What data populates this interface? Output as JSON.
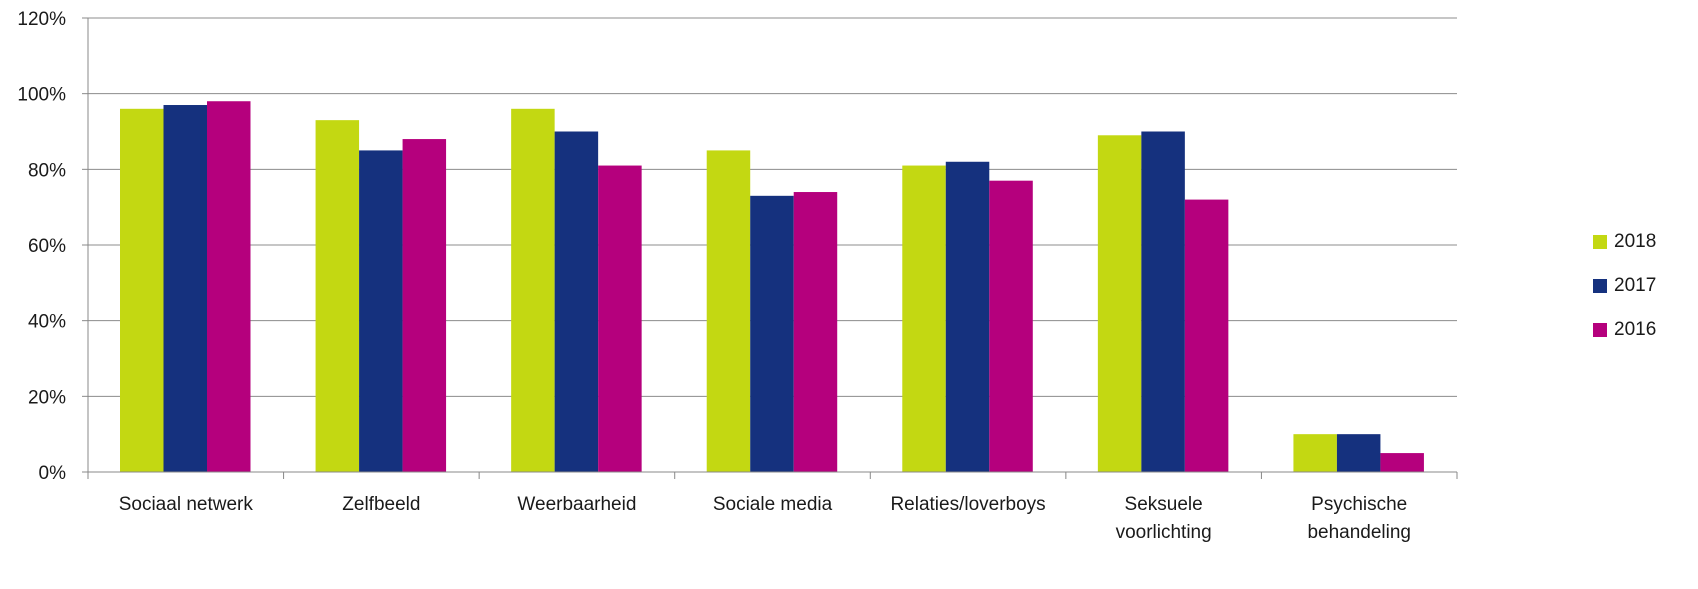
{
  "chart_data": {
    "type": "bar",
    "categories": [
      [
        "Sociaal netwerk"
      ],
      [
        "Zelfbeeld"
      ],
      [
        "Weerbaarheid"
      ],
      [
        "Sociale media"
      ],
      [
        "Relaties/loverboys"
      ],
      [
        "Seksuele",
        "voorlichting"
      ],
      [
        "Psychische",
        "behandeling"
      ]
    ],
    "series": [
      {
        "name": "2018",
        "color": "#c3d812",
        "values": [
          96,
          93,
          96,
          85,
          81,
          89,
          10
        ]
      },
      {
        "name": "2017",
        "color": "#15317e",
        "values": [
          97,
          85,
          90,
          73,
          82,
          90,
          10
        ]
      },
      {
        "name": "2016",
        "color": "#b5007d",
        "values": [
          98,
          88,
          81,
          74,
          77,
          72,
          5
        ]
      }
    ],
    "ylim": [
      0,
      120
    ],
    "yticks": [
      "0%",
      "20%",
      "40%",
      "60%",
      "80%",
      "100%",
      "120%"
    ],
    "grid": true,
    "legend_position": "right"
  }
}
